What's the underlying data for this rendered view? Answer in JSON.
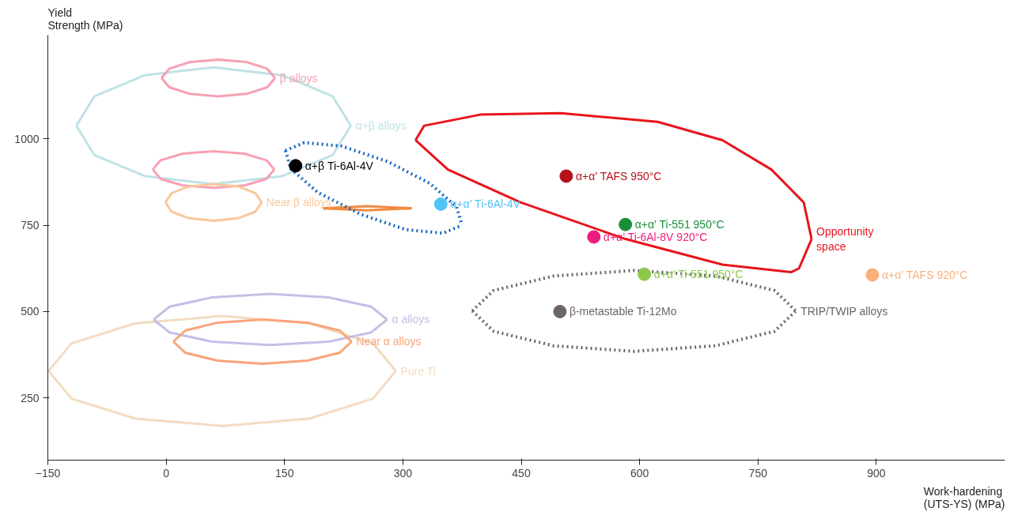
{
  "chart_data": {
    "type": "scatter",
    "xlabel": "Work-hardening\n(UTS-YS) (MPa)",
    "ylabel": "Yield\nStrength (MPa)",
    "xlim": [
      -150,
      1063
    ],
    "ylim": [
      70,
      1300
    ],
    "xticks": [
      -150,
      0,
      150,
      300,
      450,
      600,
      750,
      900
    ],
    "yticks": [
      250,
      500,
      750,
      1000
    ],
    "grid": false,
    "marker": "circle",
    "series": [
      {
        "type": "line",
        "marker": "none",
        "name": "Pure Ti",
        "color": "#f3dcc0",
        "x": [
          -149,
          -120,
          -39,
          71,
          181,
          262,
          291
        ],
        "values": [
          328,
          408,
          466,
          487,
          466,
          408,
          328
        ]
      },
      {
        "type": "line",
        "marker": "none",
        "color": "#f3dcc0",
        "x": [
          -149,
          -120,
          -39,
          71,
          181,
          262,
          291
        ],
        "values": [
          328,
          248,
          190,
          169,
          190,
          248,
          328
        ]
      },
      {
        "type": "line",
        "marker": "none",
        "name": "α alloys",
        "color": "#c9bde8",
        "x": [
          -16,
          4,
          58,
          132,
          206,
          260,
          280
        ],
        "values": [
          477,
          514,
          541,
          551,
          541,
          514,
          477
        ]
      },
      {
        "type": "line",
        "marker": "none",
        "color": "#c9bde8",
        "x": [
          -16,
          4,
          58,
          132,
          206,
          260,
          280
        ],
        "values": [
          477,
          440,
          413,
          403,
          413,
          440,
          477
        ]
      },
      {
        "type": "line",
        "marker": "none",
        "name": "Near α alloys",
        "color": "#f9a47a",
        "x": [
          9,
          24,
          65,
          122,
          179,
          220,
          235
        ],
        "values": [
          413,
          445,
          468,
          477,
          468,
          445,
          413
        ]
      },
      {
        "type": "line",
        "marker": "none",
        "color": "#f9a47a",
        "x": [
          9,
          24,
          65,
          122,
          179,
          220,
          235
        ],
        "values": [
          413,
          381,
          358,
          349,
          358,
          381,
          413
        ]
      },
      {
        "type": "line",
        "marker": "none",
        "name": "α+β  alloys",
        "color": "#bfe3e6",
        "x": [
          -114,
          -91,
          -27,
          60,
          147,
          211,
          234
        ],
        "values": [
          1038,
          1123,
          1184,
          1207,
          1184,
          1123,
          1038
        ]
      },
      {
        "type": "line",
        "marker": "none",
        "color": "#bfe3e6",
        "x": [
          -114,
          -91,
          -27,
          60,
          147,
          211,
          234
        ],
        "values": [
          1038,
          953,
          892,
          869,
          892,
          953,
          1038
        ]
      },
      {
        "type": "line",
        "marker": "none",
        "name": "β alloys",
        "color": "#f7a0b2",
        "x": [
          -6,
          4,
          30,
          66,
          102,
          128,
          138
        ],
        "values": [
          1176,
          1203,
          1222,
          1229,
          1222,
          1203,
          1176
        ]
      },
      {
        "type": "line",
        "marker": "none",
        "color": "#f7a0b2",
        "x": [
          -6,
          4,
          30,
          66,
          102,
          128,
          138
        ],
        "values": [
          1176,
          1149,
          1130,
          1123,
          1130,
          1149,
          1176
        ]
      },
      {
        "type": "line",
        "marker": "none",
        "color": "#f7a0b2",
        "x": [
          -17,
          -7,
          21,
          60,
          99,
          127,
          137
        ],
        "values": [
          911,
          938,
          957,
          964,
          957,
          938,
          911
        ]
      },
      {
        "type": "line",
        "marker": "none",
        "color": "#f7a0b2",
        "x": [
          -17,
          -7,
          21,
          60,
          99,
          127,
          137
        ],
        "values": [
          911,
          884,
          865,
          858,
          865,
          884,
          911
        ]
      },
      {
        "type": "line",
        "marker": "none",
        "name": "Near β alloys",
        "color": "#f9c89c",
        "x": [
          -1,
          7,
          29,
          60,
          91,
          113,
          121
        ],
        "values": [
          816,
          843,
          862,
          869,
          862,
          843,
          816
        ]
      },
      {
        "type": "line",
        "marker": "none",
        "color": "#f9c89c",
        "x": [
          -1,
          7,
          29,
          60,
          91,
          113,
          121
        ],
        "values": [
          816,
          789,
          770,
          763,
          770,
          789,
          816
        ]
      },
      {
        "type": "line",
        "marker": "none",
        "color": "#f08a3e",
        "x": [
          199,
          255,
          311
        ],
        "values": [
          799,
          805,
          799
        ]
      },
      {
        "type": "line",
        "marker": "none",
        "color": "#f08a3e",
        "x": [
          199,
          255,
          311
        ],
        "values": [
          799,
          793,
          799
        ]
      },
      {
        "type": "line",
        "marker": "none",
        "color": "#1565c0",
        "line_style": "dotted",
        "x": [
          151,
          175,
          222,
          281,
          334,
          368,
          375
        ],
        "values": [
          966,
          989,
          979,
          934,
          871,
          803,
          750
        ]
      },
      {
        "type": "line",
        "marker": "none",
        "color": "#1565c0",
        "line_style": "dotted",
        "x": [
          151,
          158,
          192,
          246,
          304,
          351,
          375
        ],
        "values": [
          966,
          913,
          845,
          782,
          737,
          727,
          750
        ]
      },
      {
        "type": "line",
        "marker": "none",
        "name": "Opportunity\nspace",
        "color": "#e8141c",
        "x": [
          316,
          327,
          398,
          500,
          623,
          705,
          767,
          808,
          818
        ],
        "values": [
          996,
          1038,
          1070,
          1074,
          1049,
          996,
          911,
          816,
          710
        ]
      },
      {
        "type": "line",
        "marker": "none",
        "color": "#e8141c",
        "x": [
          316,
          357,
          449,
          582,
          705,
          792,
          802,
          818
        ],
        "values": [
          996,
          911,
          816,
          710,
          636,
          614,
          625,
          710
        ]
      },
      {
        "type": "line",
        "marker": "none",
        "name": "TRIP/TWIP alloys",
        "color": "#666666",
        "line_style": "dotted",
        "x": [
          388,
          415,
          491,
          593,
          696,
          771,
          798
        ],
        "values": [
          502,
          561,
          603,
          619,
          603,
          561,
          502
        ]
      },
      {
        "type": "line",
        "marker": "none",
        "color": "#666666",
        "line_style": "dotted",
        "x": [
          388,
          415,
          491,
          593,
          696,
          771,
          798
        ],
        "values": [
          502,
          443,
          401,
          385,
          401,
          443,
          502
        ]
      },
      {
        "name": "α+β Ti-6Al-4V",
        "color": "#000000",
        "x": [
          164
        ],
        "values": [
          922
        ]
      },
      {
        "name": "α+α’ Ti-6Al-4V",
        "color": "#4fc3f7",
        "x": [
          348
        ],
        "values": [
          811
        ]
      },
      {
        "name": "α+α’ TAFS 950°C",
        "color": "#b5121b",
        "x": [
          507
        ],
        "values": [
          892
        ]
      },
      {
        "name": "α+α’ Ti-551 950°C",
        "color": "#1a8f3a",
        "x": [
          582
        ],
        "values": [
          752
        ]
      },
      {
        "name": "α+α’ Ti-6Al-8V 920°C",
        "color": "#ee1c7e",
        "x": [
          542
        ],
        "values": [
          716
        ]
      },
      {
        "name": "α+α’ Ti-551 950°C",
        "color": "#8cc84b",
        "x": [
          606
        ],
        "values": [
          608
        ]
      },
      {
        "name": "β-metastable Ti-12Mo",
        "color": "#6d6466",
        "x": [
          499
        ],
        "values": [
          500
        ]
      },
      {
        "name": "α+α’ TAFS 920°C",
        "color": "#fbb07a",
        "x": [
          895
        ],
        "values": [
          606
        ]
      }
    ]
  }
}
